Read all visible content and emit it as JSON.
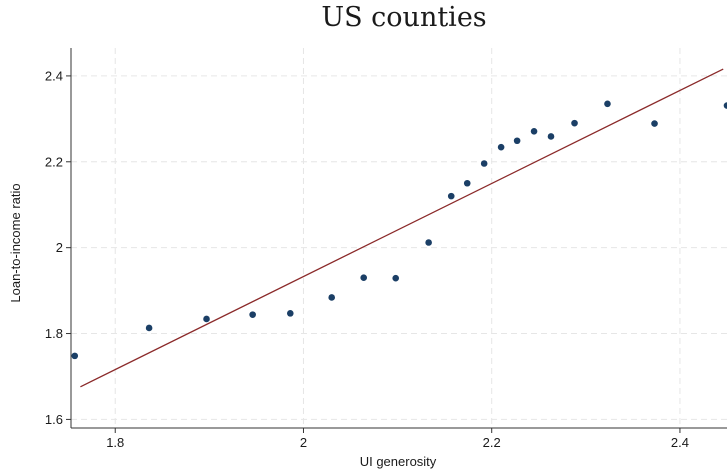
{
  "chart_data": {
    "type": "scatter",
    "title": "US counties",
    "xlabel": "UI generosity",
    "ylabel": "Loan-to-income ratio",
    "xlim": [
      1.753,
      2.45
    ],
    "ylim": [
      1.58,
      2.465
    ],
    "xticks": [
      1.8,
      2,
      2.2,
      2.4
    ],
    "xtick_labels": [
      "1.8",
      "2",
      "2.2",
      "2.4"
    ],
    "yticks": [
      1.6,
      1.8,
      2,
      2.2,
      2.4
    ],
    "ytick_labels": [
      "1.6",
      "1.8",
      "2",
      "2.2",
      "2.4"
    ],
    "grid": true,
    "colors": {
      "points": "#1b3f66",
      "fit_line": "#8b2a2a",
      "grid": "#e6e6e6",
      "axis": "#333333"
    },
    "points": [
      {
        "x": 1.757,
        "y": 1.748
      },
      {
        "x": 1.836,
        "y": 1.813
      },
      {
        "x": 1.897,
        "y": 1.834
      },
      {
        "x": 1.946,
        "y": 1.844
      },
      {
        "x": 1.986,
        "y": 1.847
      },
      {
        "x": 2.03,
        "y": 1.884
      },
      {
        "x": 2.064,
        "y": 1.93
      },
      {
        "x": 2.098,
        "y": 1.929
      },
      {
        "x": 2.133,
        "y": 2.012
      },
      {
        "x": 2.157,
        "y": 2.12
      },
      {
        "x": 2.174,
        "y": 2.15
      },
      {
        "x": 2.192,
        "y": 2.196
      },
      {
        "x": 2.21,
        "y": 2.234
      },
      {
        "x": 2.227,
        "y": 2.249
      },
      {
        "x": 2.245,
        "y": 2.271
      },
      {
        "x": 2.263,
        "y": 2.259
      },
      {
        "x": 2.288,
        "y": 2.29
      },
      {
        "x": 2.323,
        "y": 2.335
      },
      {
        "x": 2.373,
        "y": 2.289
      },
      {
        "x": 2.45,
        "y": 2.331
      }
    ],
    "fit_line": {
      "x": [
        1.763,
        2.446
      ],
      "y": [
        1.676,
        2.416
      ]
    }
  }
}
